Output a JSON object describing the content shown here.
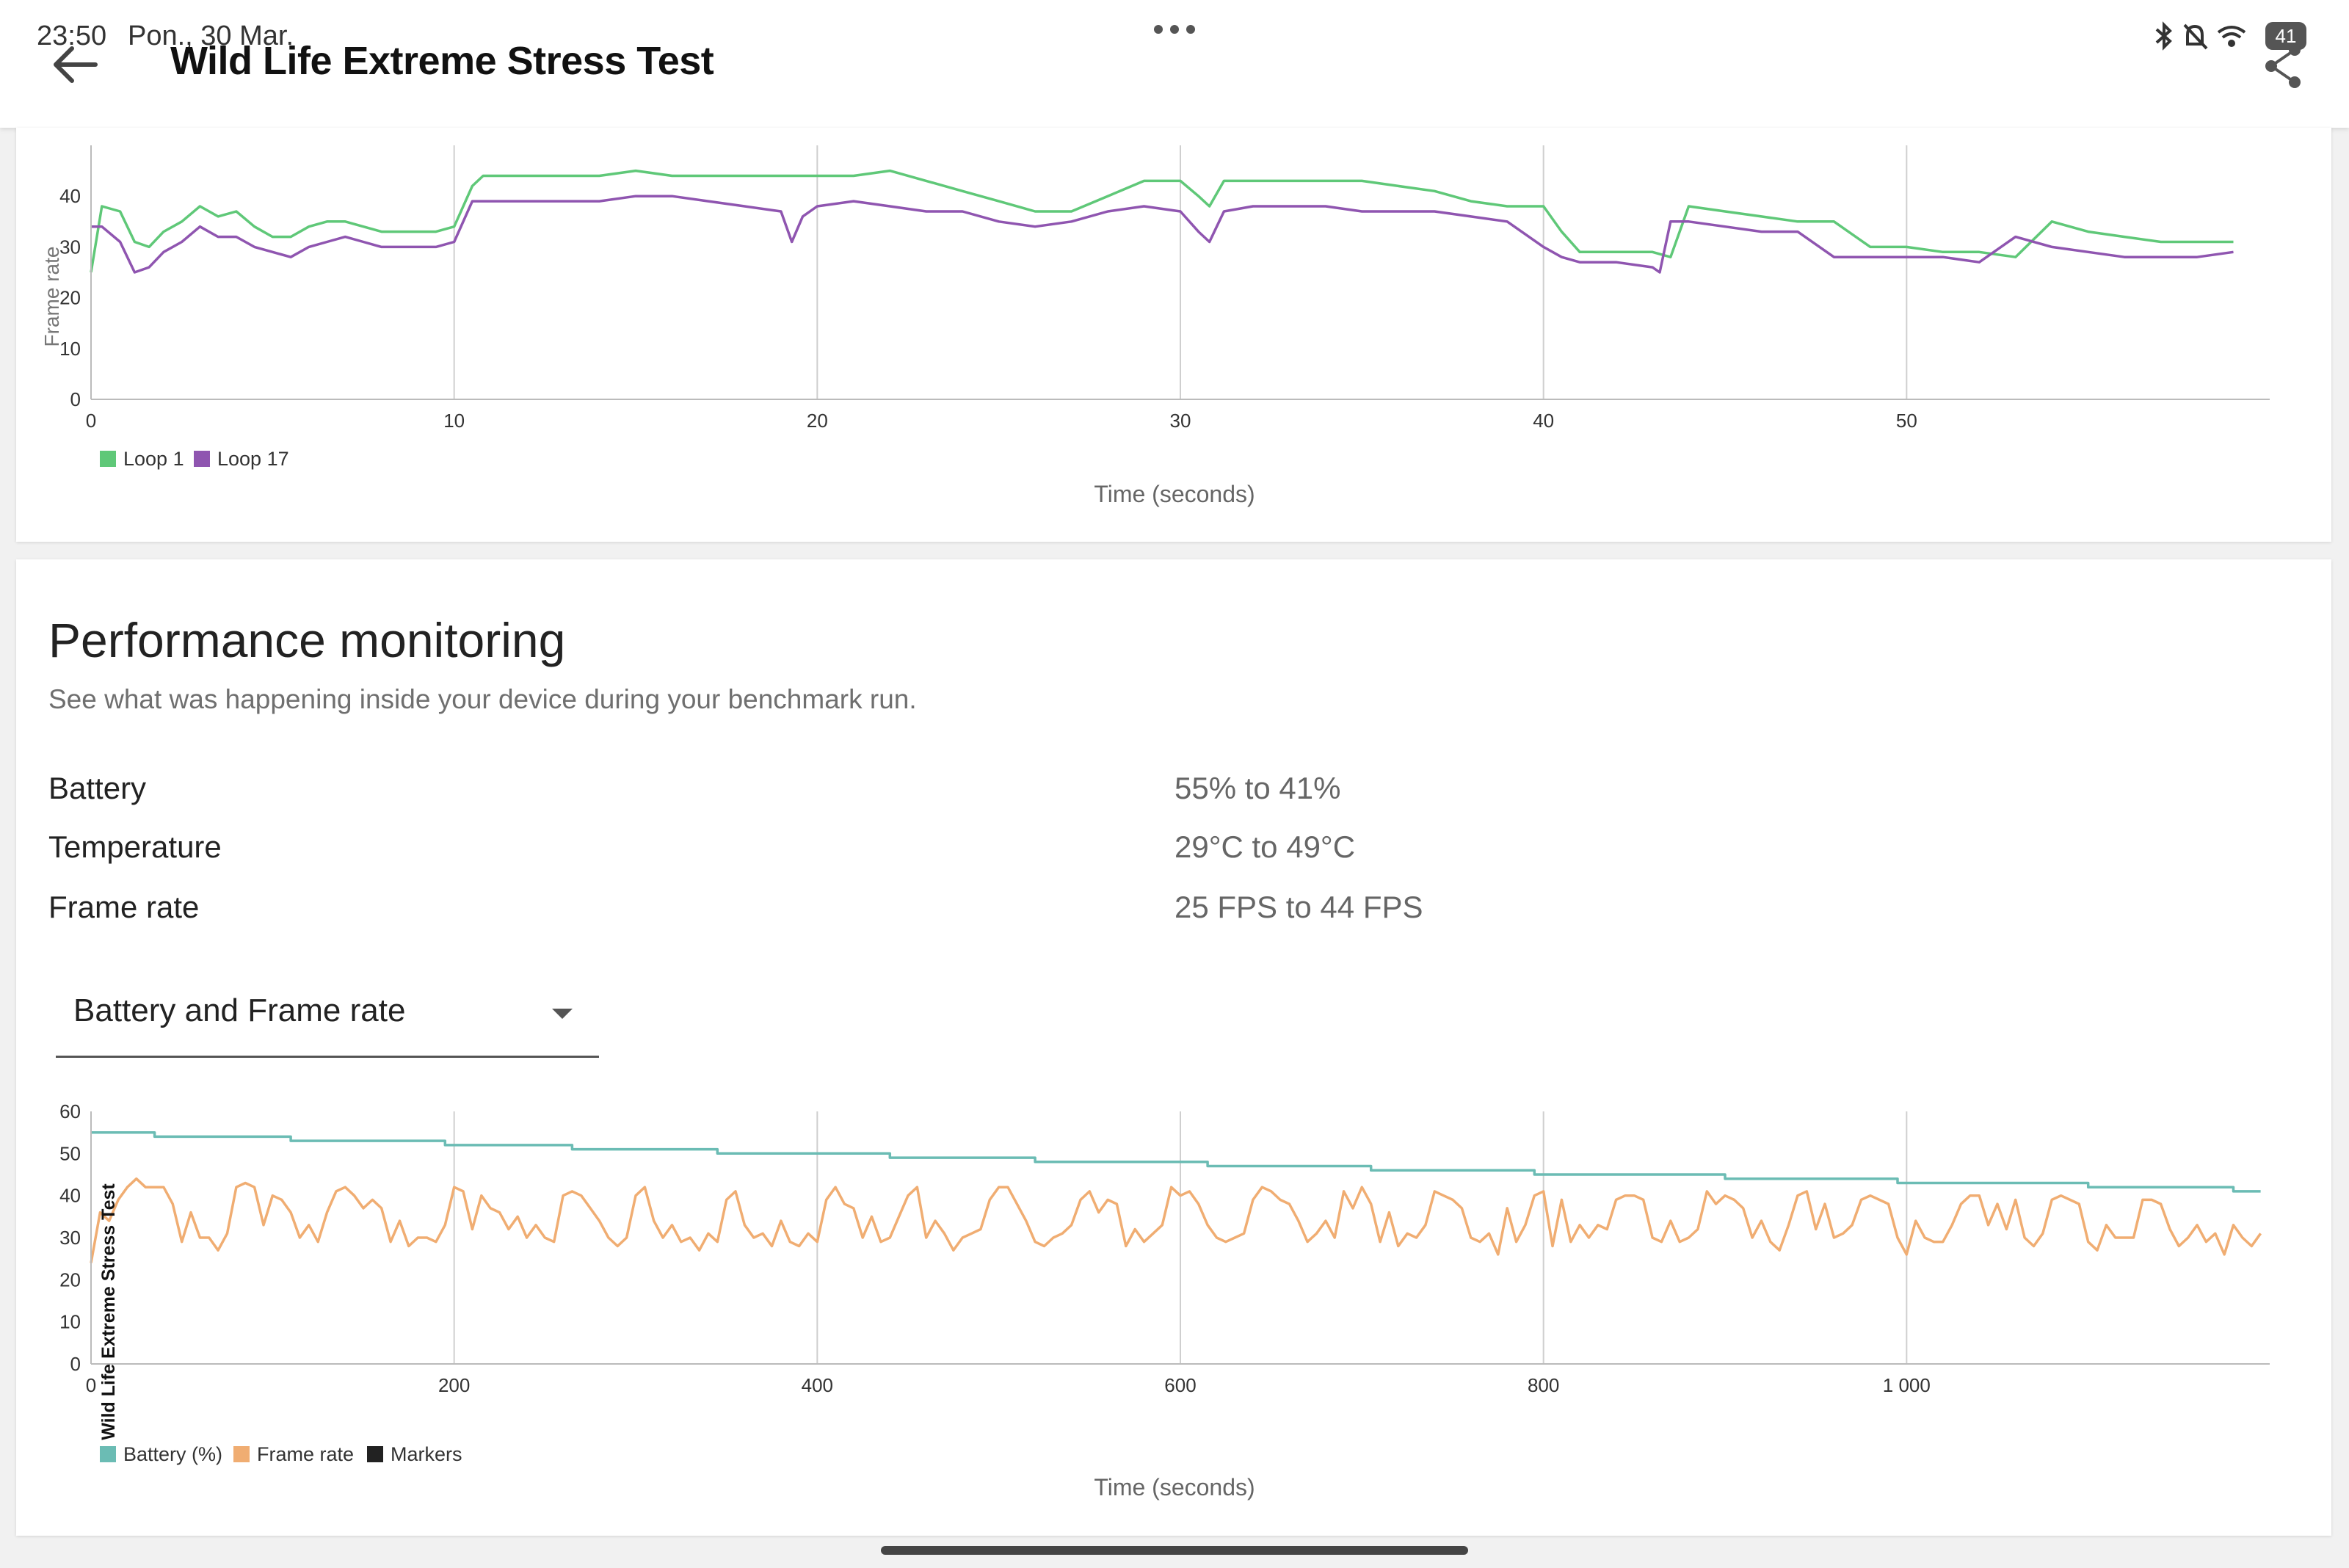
{
  "status_bar": {
    "time": "23:50",
    "date": "Pon., 30 Mar.",
    "battery": "41"
  },
  "app_bar": {
    "title": "Wild Life Extreme Stress Test"
  },
  "fps_card": {
    "chart_data": {
      "type": "line",
      "xlabel": "Time (seconds)",
      "ylabel": "Frame rate",
      "xlim": [
        0,
        60
      ],
      "ylim": [
        0,
        50
      ],
      "x_ticks": [
        "0",
        "10",
        "20",
        "30",
        "40",
        "50"
      ],
      "y_ticks": [
        "0",
        "10",
        "20",
        "30",
        "40"
      ],
      "grid": "vertical",
      "legend": "bottom-left",
      "series": [
        {
          "name": "Loop 1",
          "color": "#5fc878",
          "x": [
            0,
            0.3,
            0.8,
            1.2,
            1.6,
            2.0,
            2.5,
            3.0,
            3.5,
            4.0,
            4.5,
            5.0,
            5.5,
            6.0,
            6.5,
            7.0,
            7.5,
            8.0,
            8.5,
            9.0,
            9.5,
            10.0,
            10.5,
            10.8,
            11.2,
            12,
            13,
            14,
            15,
            16,
            17,
            18,
            19,
            20,
            21,
            22,
            23,
            24,
            25,
            26,
            27,
            28,
            29,
            30,
            30.5,
            30.8,
            31.2,
            32,
            33,
            34,
            35,
            36,
            37,
            38,
            39,
            40,
            40.5,
            41,
            42,
            43,
            43.5,
            44,
            45,
            46,
            47,
            48,
            49,
            50,
            51,
            52,
            53,
            54,
            55,
            56,
            57,
            58,
            59
          ],
          "values": [
            25,
            38,
            37,
            31,
            30,
            33,
            35,
            38,
            36,
            37,
            34,
            32,
            32,
            34,
            35,
            35,
            34,
            33,
            33,
            33,
            33,
            34,
            42,
            44,
            44,
            44,
            44,
            44,
            45,
            44,
            44,
            44,
            44,
            44,
            44,
            45,
            43,
            41,
            39,
            37,
            37,
            40,
            43,
            43,
            40,
            38,
            43,
            43,
            43,
            43,
            43,
            42,
            41,
            39,
            38,
            38,
            33,
            29,
            29,
            29,
            28,
            38,
            37,
            36,
            35,
            35,
            30,
            30,
            29,
            29,
            28,
            35,
            33,
            32,
            31,
            31,
            31
          ]
        },
        {
          "name": "Loop 17",
          "color": "#8f55b0",
          "x": [
            0,
            0.3,
            0.8,
            1.2,
            1.6,
            2.0,
            2.5,
            3.0,
            3.5,
            4.0,
            4.5,
            5.0,
            5.5,
            6.0,
            6.5,
            7.0,
            7.5,
            8.0,
            8.5,
            9.0,
            9.5,
            10.0,
            10.5,
            10.8,
            11.2,
            12,
            13,
            14,
            15,
            16,
            17,
            18,
            19,
            19.3,
            19.6,
            20,
            21,
            22,
            23,
            24,
            25,
            26,
            27,
            28,
            29,
            30,
            30.5,
            30.8,
            31.2,
            32,
            33,
            34,
            35,
            36,
            37,
            38,
            39,
            40,
            40.5,
            41,
            42,
            43,
            43.2,
            43.5,
            44,
            45,
            46,
            47,
            48,
            49,
            50,
            51,
            52,
            53,
            54,
            55,
            56,
            57,
            58,
            59
          ],
          "values": [
            34,
            34,
            31,
            25,
            26,
            29,
            31,
            34,
            32,
            32,
            30,
            29,
            28,
            30,
            31,
            32,
            31,
            30,
            30,
            30,
            30,
            31,
            39,
            39,
            39,
            39,
            39,
            39,
            40,
            40,
            39,
            38,
            37,
            31,
            36,
            38,
            39,
            38,
            37,
            37,
            35,
            34,
            35,
            37,
            38,
            37,
            33,
            31,
            37,
            38,
            38,
            38,
            37,
            37,
            37,
            36,
            35,
            30,
            28,
            27,
            27,
            26,
            25,
            35,
            35,
            34,
            33,
            33,
            28,
            28,
            28,
            28,
            27,
            32,
            30,
            29,
            28,
            28,
            28,
            29
          ]
        }
      ]
    }
  },
  "perf_card": {
    "title": "Performance monitoring",
    "subtitle": "See what was happening inside your device during your benchmark run.",
    "metrics": [
      {
        "label": "Battery",
        "value": "55% to 41%"
      },
      {
        "label": "Temperature",
        "value": "29°C to 49°C"
      },
      {
        "label": "Frame rate",
        "value": "25 FPS to 44 FPS"
      }
    ],
    "dropdown": {
      "selected": "Battery and Frame rate"
    },
    "chart_data": {
      "type": "line",
      "xlabel": "Time (seconds)",
      "ylabel": "Wild Life Extreme Stress Test",
      "xlim": [
        0,
        1200
      ],
      "ylim": [
        0,
        60
      ],
      "x_ticks": [
        "0",
        "200",
        "400",
        "600",
        "800",
        "1 000"
      ],
      "y_ticks": [
        "0",
        "10",
        "20",
        "30",
        "40",
        "50",
        "60"
      ],
      "grid": "vertical",
      "legend": "bottom-left",
      "series": [
        {
          "name": "Battery (%)",
          "color": "#6bbcb4",
          "x": [
            0,
            35,
            35,
            110,
            110,
            195,
            195,
            265,
            265,
            345,
            345,
            440,
            440,
            520,
            520,
            615,
            615,
            705,
            705,
            795,
            795,
            900,
            900,
            995,
            995,
            1100,
            1100,
            1180,
            1180,
            1195
          ],
          "values": [
            55,
            55,
            54,
            54,
            53,
            53,
            52,
            52,
            51,
            51,
            50,
            50,
            49,
            49,
            48,
            48,
            47,
            47,
            46,
            46,
            45,
            45,
            44,
            44,
            43,
            43,
            42,
            42,
            41,
            41
          ]
        },
        {
          "name": "Frame rate",
          "color": "#f0ad72",
          "x": [
            0,
            5,
            10,
            15,
            20,
            25,
            30,
            35,
            40,
            45,
            50,
            55,
            60,
            65,
            70,
            75,
            80,
            85,
            90,
            95,
            100,
            105,
            110,
            115,
            120,
            125,
            130,
            135,
            140,
            145,
            150,
            155,
            160,
            165,
            170,
            175,
            180,
            185,
            190,
            195,
            200,
            205,
            210,
            215,
            220,
            225,
            230,
            235,
            240,
            245,
            250,
            255,
            260,
            265,
            270,
            275,
            280,
            285,
            290,
            295,
            300,
            305,
            310,
            315,
            320,
            325,
            330,
            335,
            340,
            345,
            350,
            355,
            360,
            365,
            370,
            375,
            380,
            385,
            390,
            395,
            400,
            405,
            410,
            415,
            420,
            425,
            430,
            435,
            440,
            445,
            450,
            455,
            460,
            465,
            470,
            475,
            480,
            485,
            490,
            495,
            500,
            505,
            510,
            515,
            520,
            525,
            530,
            535,
            540,
            545,
            550,
            555,
            560,
            565,
            570,
            575,
            580,
            585,
            590,
            595,
            600,
            605,
            610,
            615,
            620,
            625,
            630,
            635,
            640,
            645,
            650,
            655,
            660,
            665,
            670,
            675,
            680,
            685,
            690,
            695,
            700,
            705,
            710,
            715,
            720,
            725,
            730,
            735,
            740,
            745,
            750,
            755,
            760,
            765,
            770,
            775,
            780,
            785,
            790,
            795,
            800,
            805,
            810,
            815,
            820,
            825,
            830,
            835,
            840,
            845,
            850,
            855,
            860,
            865,
            870,
            875,
            880,
            885,
            890,
            895,
            900,
            905,
            910,
            915,
            920,
            925,
            930,
            935,
            940,
            945,
            950,
            955,
            960,
            965,
            970,
            975,
            980,
            985,
            990,
            995,
            1000,
            1005,
            1010,
            1015,
            1020,
            1025,
            1030,
            1035,
            1040,
            1045,
            1050,
            1055,
            1060,
            1065,
            1070,
            1075,
            1080,
            1085,
            1090,
            1095,
            1100,
            1105,
            1110,
            1115,
            1120,
            1125,
            1130,
            1135,
            1140,
            1145,
            1150,
            1155,
            1160,
            1165,
            1170,
            1175,
            1180,
            1185,
            1190,
            1195
          ],
          "values": [
            24,
            36,
            34,
            39,
            42,
            44,
            42,
            42,
            42,
            38,
            29,
            36,
            30,
            30,
            27,
            31,
            42,
            43,
            42,
            33,
            40,
            39,
            36,
            30,
            33,
            29,
            36,
            41,
            42,
            40,
            37,
            39,
            37,
            29,
            34,
            28,
            30,
            30,
            29,
            33,
            42,
            41,
            32,
            40,
            37,
            36,
            32,
            35,
            30,
            33,
            30,
            29,
            40,
            41,
            40,
            37,
            34,
            30,
            28,
            30,
            40,
            42,
            34,
            30,
            33,
            29,
            30,
            27,
            31,
            29,
            39,
            41,
            33,
            30,
            31,
            28,
            34,
            29,
            28,
            31,
            29,
            39,
            42,
            38,
            37,
            30,
            35,
            29,
            30,
            35,
            40,
            42,
            30,
            34,
            31,
            27,
            30,
            31,
            32,
            39,
            42,
            42,
            38,
            34,
            29,
            28,
            30,
            31,
            33,
            39,
            41,
            36,
            39,
            38,
            28,
            32,
            29,
            31,
            33,
            42,
            40,
            41,
            38,
            33,
            30,
            29,
            30,
            31,
            39,
            42,
            41,
            39,
            38,
            34,
            29,
            31,
            34,
            30,
            41,
            37,
            42,
            38,
            29,
            36,
            28,
            31,
            30,
            33,
            41,
            40,
            39,
            37,
            30,
            29,
            31,
            26,
            37,
            29,
            33,
            40,
            41,
            28,
            39,
            29,
            33,
            30,
            33,
            32,
            39,
            40,
            40,
            39,
            30,
            29,
            34,
            29,
            30,
            32,
            41,
            38,
            40,
            39,
            37,
            30,
            34,
            29,
            27,
            33,
            40,
            41,
            32,
            38,
            30,
            31,
            33,
            39,
            40,
            39,
            38,
            30,
            26,
            34,
            30,
            29,
            29,
            33,
            38,
            40,
            40,
            33,
            38,
            32,
            39,
            30,
            28,
            31,
            39,
            40,
            39,
            38,
            29,
            27,
            33,
            30,
            30,
            30,
            39,
            39,
            38,
            32,
            28,
            30,
            33,
            29,
            31,
            26,
            33,
            30,
            28,
            31
          ]
        },
        {
          "name": "Markers",
          "color": "#222222",
          "x": [],
          "values": []
        }
      ]
    }
  }
}
